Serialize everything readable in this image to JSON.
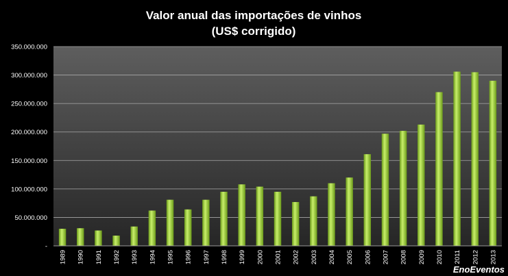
{
  "chart_data": {
    "type": "bar",
    "title_line1": "Valor anual das importações de vinhos",
    "title_line2": "(US$ corrigido)",
    "xlabel": "",
    "ylabel": "",
    "ylim": [
      0,
      350000000
    ],
    "yticks": [
      0,
      50000000,
      100000000,
      150000000,
      200000000,
      250000000,
      300000000,
      350000000
    ],
    "ytick_labels": [
      "-",
      "50.000.000",
      "100.000.000",
      "150.000.000",
      "200.000.000",
      "250.000.000",
      "300.000.000",
      "350.000.000"
    ],
    "grid": true,
    "legend": "none",
    "categories": [
      "1989",
      "1990",
      "1991",
      "1992",
      "1993",
      "1994",
      "1995",
      "1996",
      "1997",
      "1998",
      "1999",
      "2000",
      "2001",
      "2002",
      "2003",
      "2004",
      "2005",
      "2006",
      "2007",
      "2008",
      "2009",
      "2010",
      "2011",
      "2012",
      "2013"
    ],
    "values": [
      30000000,
      31000000,
      27000000,
      18000000,
      34000000,
      62000000,
      81000000,
      64000000,
      81000000,
      95000000,
      108000000,
      104000000,
      95000000,
      77000000,
      87000000,
      110000000,
      120000000,
      161000000,
      197000000,
      202000000,
      213000000,
      270000000,
      306000000,
      305000000,
      290000000
    ]
  },
  "watermark": "EnoEventos",
  "colors": {
    "background": "#000000",
    "plot_top": "#5e5e5e",
    "plot_bottom": "#262626",
    "bar_light": "#c8ef6a",
    "bar_dark": "#6b9a1a",
    "grid": "#a9a9a9",
    "text": "#ffffff"
  }
}
